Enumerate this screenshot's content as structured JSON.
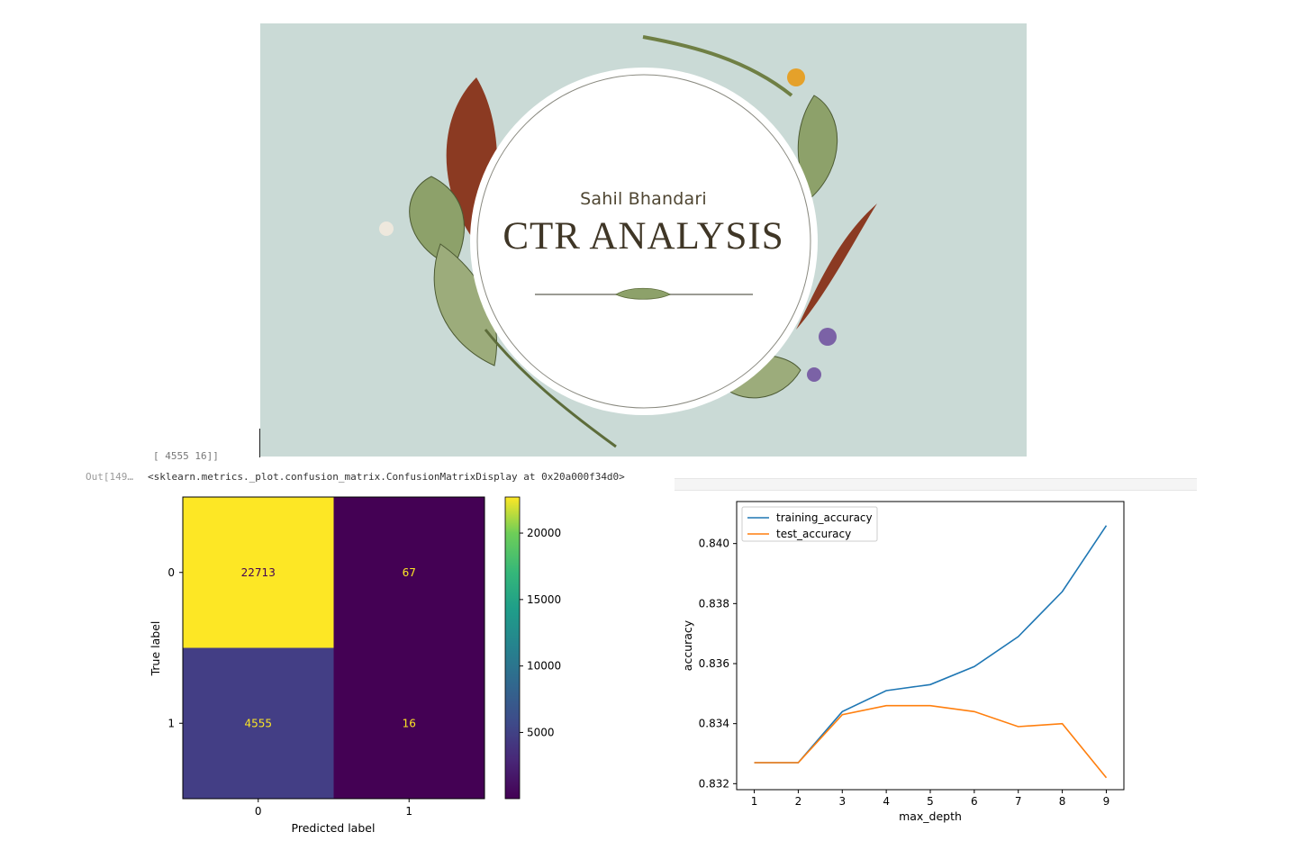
{
  "banner": {
    "author": "Sahil Bhandari",
    "title": "CTR ANALYSIS"
  },
  "notebook": {
    "prev_output": "[ 4555    16]]",
    "out_prompt": "Out[149…",
    "out_text": "<sklearn.metrics._plot.confusion_matrix.ConfusionMatrixDisplay at 0x20a000f34d0>"
  },
  "chart_data": [
    {
      "type": "heatmap",
      "title": "",
      "xlabel": "Predicted label",
      "ylabel": "True label",
      "x_categories": [
        "0",
        "1"
      ],
      "y_categories": [
        "0",
        "1"
      ],
      "values": [
        [
          22713,
          67
        ],
        [
          4555,
          16
        ]
      ],
      "colormap": "viridis",
      "colorbar": {
        "range": [
          16,
          22713
        ],
        "ticks": [
          5000,
          10000,
          15000,
          20000
        ]
      },
      "cell_colors": [
        [
          "#fde725",
          "#440154"
        ],
        [
          "#433e85",
          "#440154"
        ]
      ],
      "text_colors": [
        [
          "#440154",
          "#fde725"
        ],
        [
          "#fde725",
          "#fde725"
        ]
      ]
    },
    {
      "type": "line",
      "title": "",
      "xlabel": "max_depth",
      "ylabel": "accuracy",
      "x": [
        1,
        2,
        3,
        4,
        5,
        6,
        7,
        8,
        9
      ],
      "xlim": [
        0.6,
        9.4
      ],
      "ylim": [
        0.8318,
        0.8414
      ],
      "yticks": [
        0.832,
        0.834,
        0.836,
        0.838,
        0.84
      ],
      "ytick_labels": [
        "0.832",
        "0.834",
        "0.836",
        "0.838",
        "0.840"
      ],
      "legend": "top-left",
      "grid": false,
      "series": [
        {
          "name": "training_accuracy",
          "color": "#1f77b4",
          "values": [
            0.8327,
            0.8327,
            0.8344,
            0.8351,
            0.8353,
            0.8359,
            0.8369,
            0.8384,
            0.8406
          ]
        },
        {
          "name": "test_accuracy",
          "color": "#ff7f0e",
          "values": [
            0.8327,
            0.8327,
            0.8343,
            0.8346,
            0.8346,
            0.8344,
            0.8339,
            0.834,
            0.8322
          ]
        }
      ]
    }
  ]
}
